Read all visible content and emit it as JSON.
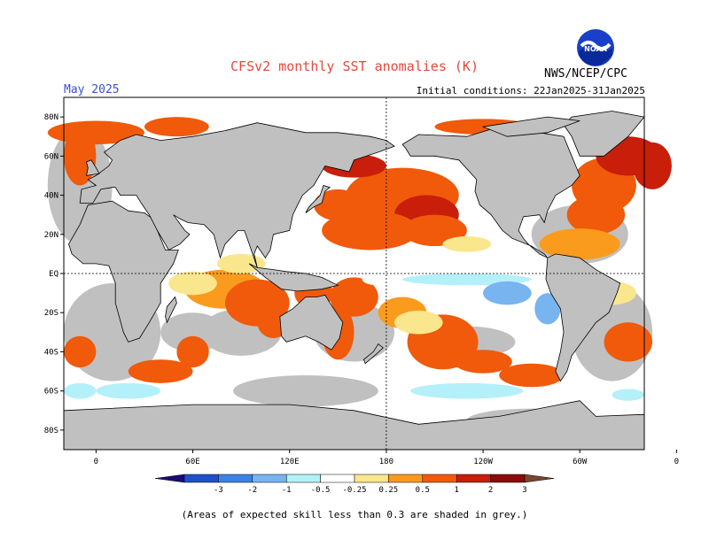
{
  "header": {
    "title": "CFSv2 monthly SST anomalies (K)",
    "month": "May 2025",
    "initial_conditions": "Initial conditions: 22Jan2025-31Jan2025",
    "agency": "NWS/NCEP/CPC",
    "logo_text": "NOAA"
  },
  "map": {
    "lat_labels": [
      "80N",
      "60N",
      "40N",
      "20N",
      "EQ",
      "20S",
      "40S",
      "60S",
      "80S"
    ],
    "lon_labels": [
      "0",
      "60E",
      "120E",
      "180",
      "120W",
      "60W",
      "0"
    ],
    "colors": {
      "land": "#c0c0c0",
      "skill_mask": "#c0c0c0",
      "coast": "#000000",
      "gridline": "#000000"
    }
  },
  "colorbar": {
    "tick_labels": [
      "-3",
      "-2",
      "-1",
      "-0.5",
      "-0.25",
      "0.25",
      "0.5",
      "1",
      "2",
      "3"
    ],
    "colors": [
      "#1a0a7a",
      "#2050c8",
      "#3c82e6",
      "#78b4f0",
      "#b4f0fa",
      "#ffffff",
      "#fae68c",
      "#fa9b1e",
      "#f05a0a",
      "#c81e0a",
      "#8c0a0a",
      "#784632"
    ]
  },
  "footnote": "(Areas of expected skill less than 0.3 are shaded in grey.)"
}
